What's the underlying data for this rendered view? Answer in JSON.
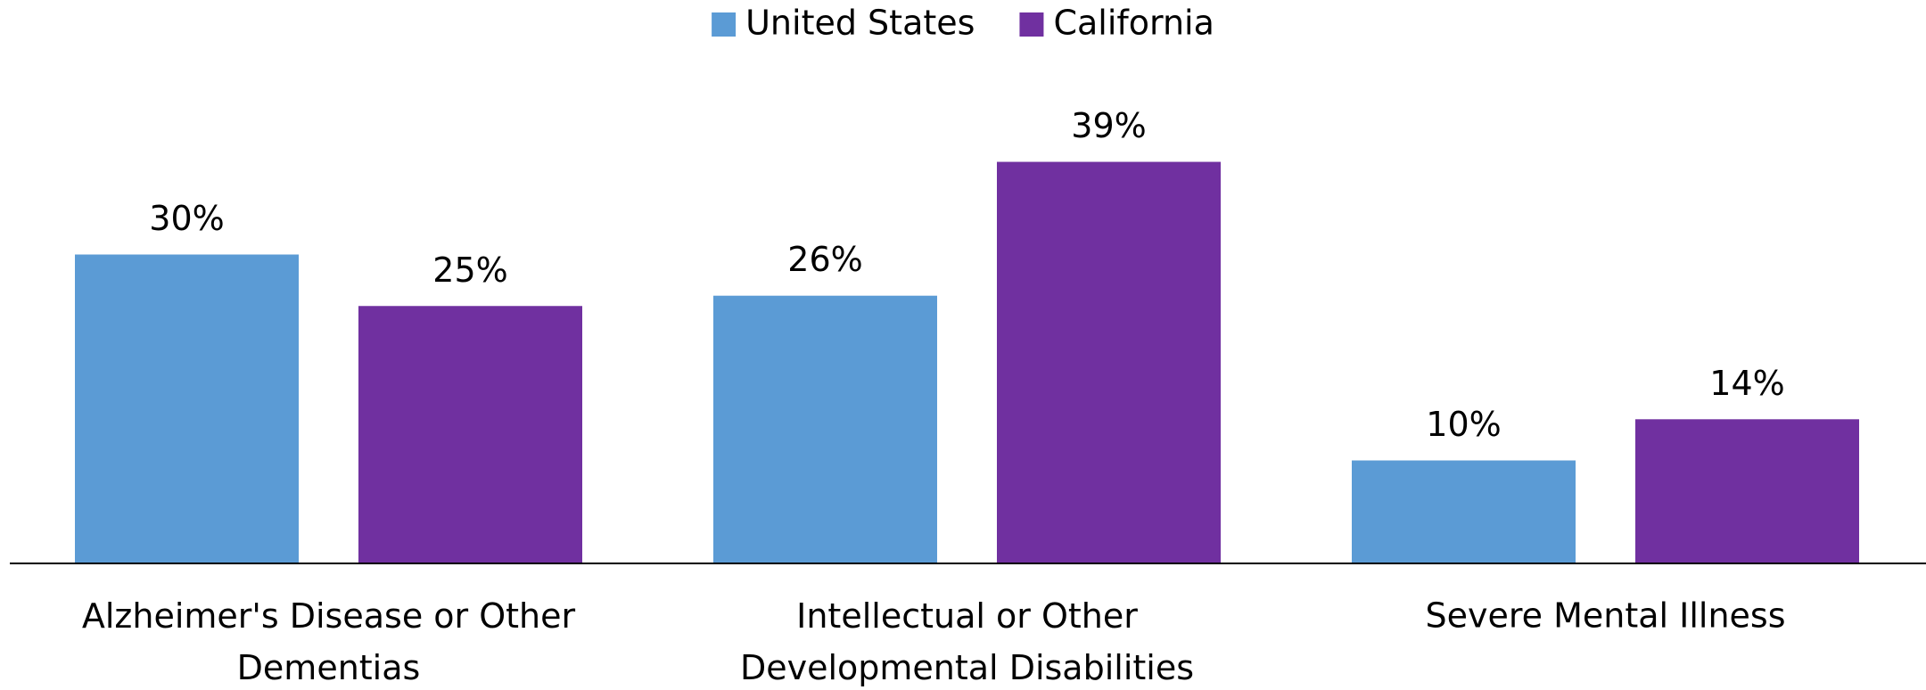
{
  "chart_data": {
    "type": "bar",
    "categories": [
      "Alzheimer's Disease or Other Dementias",
      "Intellectual or Other Developmental Disabilities",
      "Severe Mental Illness"
    ],
    "series": [
      {
        "name": "United States",
        "color": "#5b9bd5",
        "values": [
          30,
          26,
          10
        ],
        "value_labels": [
          "30%",
          "26%",
          "10%"
        ]
      },
      {
        "name": "California",
        "color": "#7030a0",
        "values": [
          25,
          39,
          14
        ],
        "value_labels": [
          "25%",
          "39%",
          "14%"
        ]
      }
    ],
    "ylim": [
      0,
      40
    ],
    "legend": "top"
  }
}
